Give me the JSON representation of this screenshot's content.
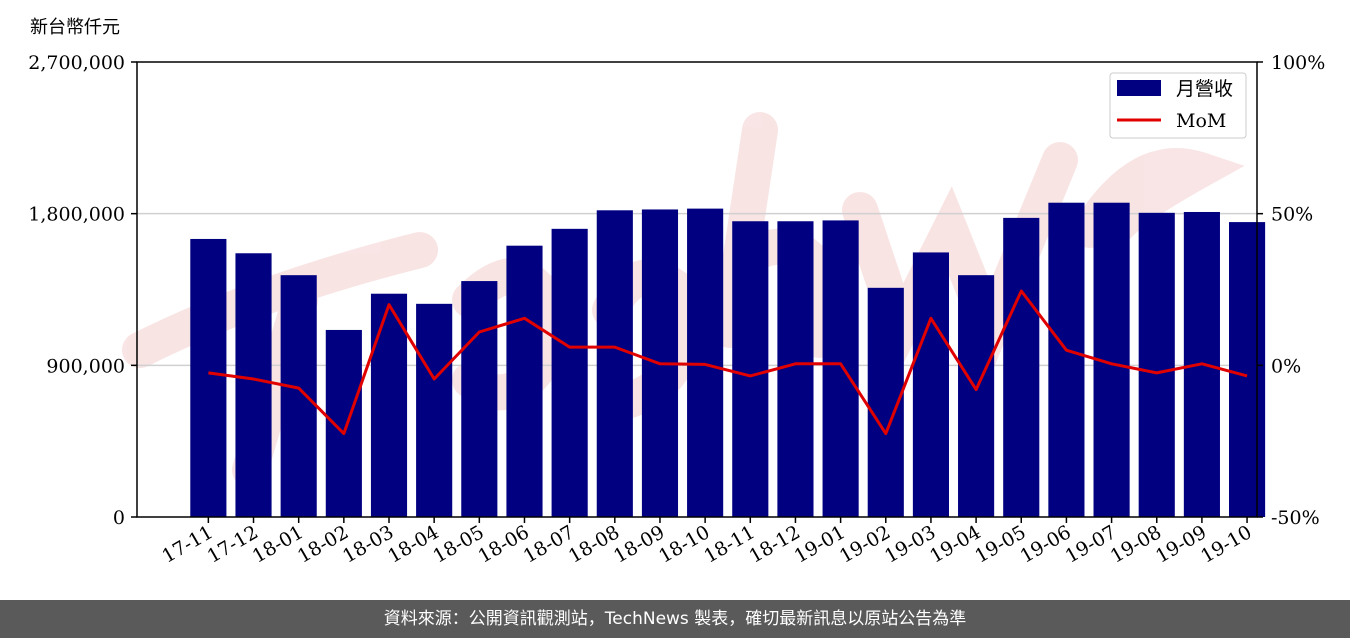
{
  "chart_data": {
    "type": "bar",
    "y_unit_label": "新台幣仟元",
    "categories": [
      "17-11",
      "17-12",
      "18-01",
      "18-02",
      "18-03",
      "18-04",
      "18-05",
      "18-06",
      "18-07",
      "18-08",
      "18-09",
      "18-10",
      "18-11",
      "18-12",
      "19-01",
      "19-02",
      "19-03",
      "19-04",
      "19-05",
      "19-06",
      "19-07",
      "19-08",
      "19-09",
      "19-10"
    ],
    "series": [
      {
        "name": "月營收",
        "axis": "left",
        "kind": "bar",
        "color": "#000080",
        "values": [
          1650000,
          1565000,
          1435000,
          1110000,
          1325000,
          1265000,
          1400000,
          1610000,
          1710000,
          1820000,
          1825000,
          1830000,
          1755000,
          1755000,
          1760000,
          1360000,
          1570000,
          1435000,
          1775000,
          1865000,
          1865000,
          1805000,
          1810000,
          1750000
        ]
      },
      {
        "name": "MoM",
        "axis": "right",
        "kind": "line",
        "color": "#e00000",
        "values": [
          -2.5,
          -4.5,
          -7.5,
          -22.5,
          20,
          -4.5,
          11,
          15.5,
          6,
          6,
          0.5,
          0.3,
          -3.5,
          0.5,
          0.5,
          -22.5,
          15.5,
          -8,
          24.5,
          5,
          0.5,
          -2.5,
          0.5,
          -3.5
        ]
      }
    ],
    "y_left": {
      "min": 0,
      "max": 2700000,
      "ticks": [
        "0",
        "900,000",
        "1,800,000",
        "2,700,000"
      ],
      "tick_values": [
        0,
        900000,
        1800000,
        2700000
      ]
    },
    "y_right": {
      "min": -50,
      "max": 100,
      "ticks": [
        "-50%",
        "0%",
        "50%",
        "100%"
      ],
      "tick_values": [
        -50,
        0,
        50,
        100
      ]
    },
    "grid": "horizontal",
    "legend": "top-right",
    "watermark": "TechNews"
  },
  "footer": {
    "text": "資料來源：公開資訊觀測站，TechNews 製表，確切最新訊息以原站公告為準"
  }
}
